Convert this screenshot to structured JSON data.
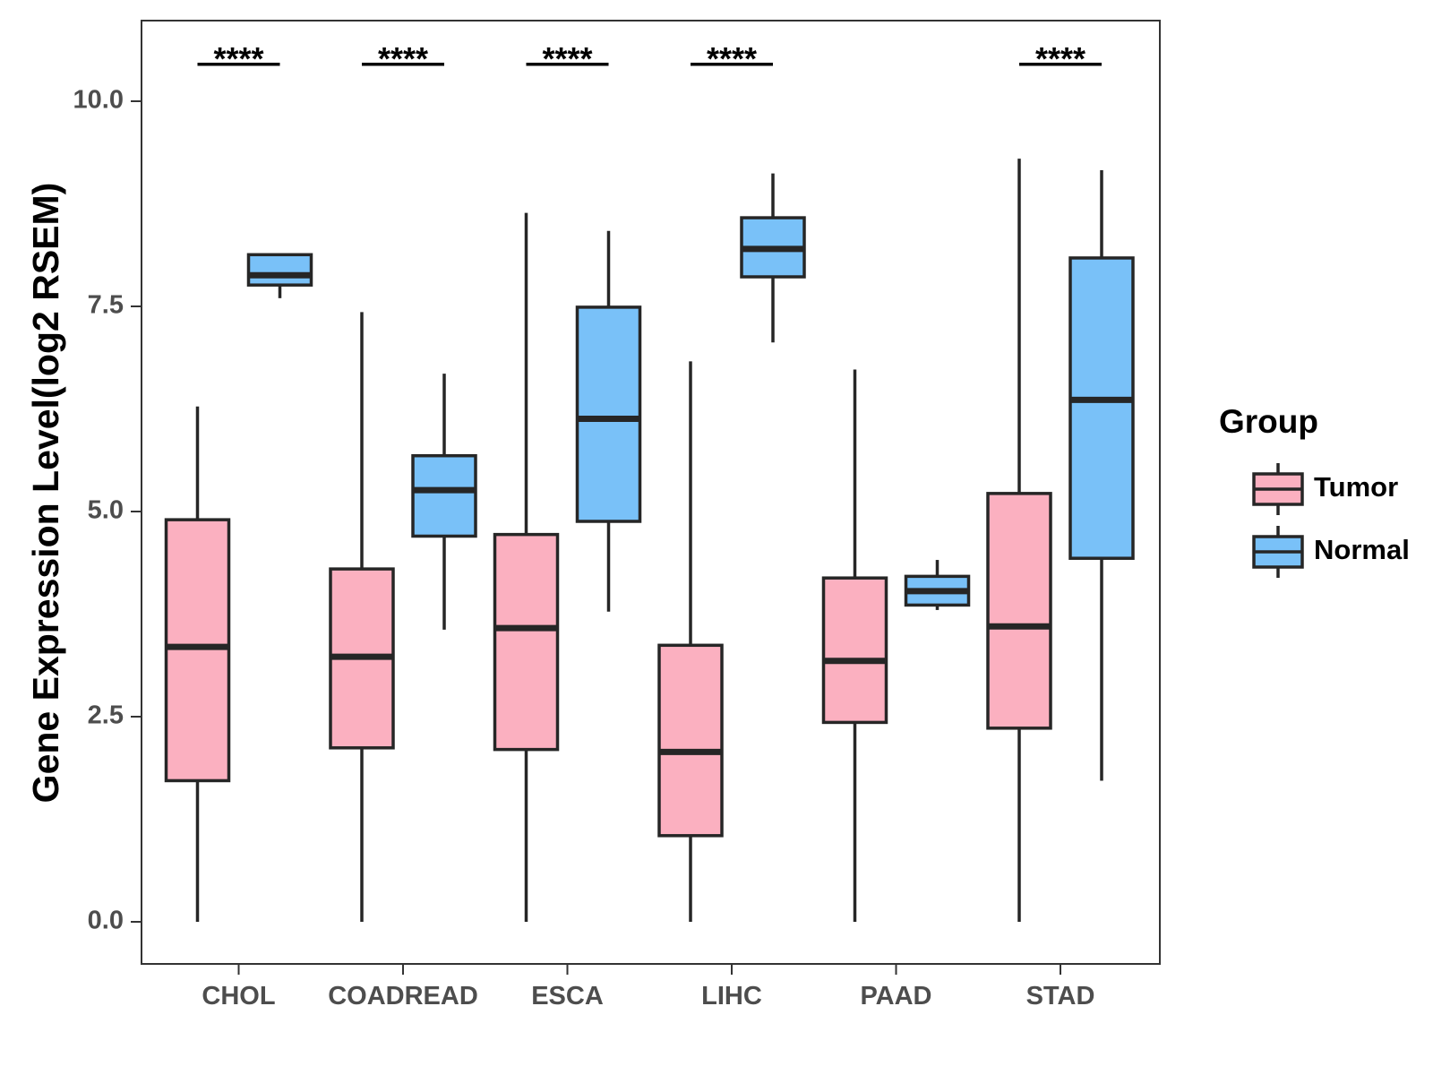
{
  "chart_data": {
    "type": "boxplot",
    "title": "",
    "xlabel": "",
    "ylabel": "Gene Expression Level(log2 RSEM)",
    "ylim": [
      -0.5,
      11.0
    ],
    "yticks": [
      0.0,
      2.5,
      5.0,
      7.5,
      10.0
    ],
    "ytick_labels": [
      "0.0",
      "2.5",
      "5.0",
      "7.5",
      "10.0"
    ],
    "grid": false,
    "categories": [
      "CHOL",
      "COADREAD",
      "ESCA",
      "LIHC",
      "PAAD",
      "STAD"
    ],
    "legend": {
      "title": "Group",
      "position": "right",
      "entries": [
        {
          "name": "Tumor",
          "color": "#fbb0c0"
        },
        {
          "name": "Normal",
          "color": "#79c1f8"
        }
      ]
    },
    "series": [
      {
        "name": "Tumor",
        "color": "#fbb0c0",
        "boxes": [
          {
            "min": 0.0,
            "q1": 1.72,
            "median": 3.35,
            "q3": 4.9,
            "max": 6.28
          },
          {
            "min": 0.0,
            "q1": 2.12,
            "median": 3.23,
            "q3": 4.3,
            "max": 7.43
          },
          {
            "min": 0.0,
            "q1": 2.1,
            "median": 3.58,
            "q3": 4.72,
            "max": 8.64
          },
          {
            "min": 0.0,
            "q1": 1.05,
            "median": 2.07,
            "q3": 3.37,
            "max": 6.83
          },
          {
            "min": 0.0,
            "q1": 2.43,
            "median": 3.18,
            "q3": 4.19,
            "max": 6.73
          },
          {
            "min": 0.0,
            "q1": 2.36,
            "median": 3.6,
            "q3": 5.22,
            "max": 9.3
          }
        ]
      },
      {
        "name": "Normal",
        "color": "#79c1f8",
        "boxes": [
          {
            "min": 7.6,
            "q1": 7.76,
            "median": 7.88,
            "q3": 8.13,
            "max": 8.13
          },
          {
            "min": 3.56,
            "q1": 4.7,
            "median": 5.26,
            "q3": 5.68,
            "max": 6.68
          },
          {
            "min": 3.78,
            "q1": 4.88,
            "median": 6.13,
            "q3": 7.49,
            "max": 8.42
          },
          {
            "min": 7.06,
            "q1": 7.86,
            "median": 8.2,
            "q3": 8.58,
            "max": 9.12
          },
          {
            "min": 3.8,
            "q1": 3.86,
            "median": 4.03,
            "q3": 4.21,
            "max": 4.41
          },
          {
            "min": 1.72,
            "q1": 4.43,
            "median": 6.36,
            "q3": 8.09,
            "max": 9.16
          }
        ]
      }
    ],
    "significance": [
      "****",
      "****",
      "****",
      "****",
      "",
      "****"
    ],
    "significance_y": 10.45
  }
}
